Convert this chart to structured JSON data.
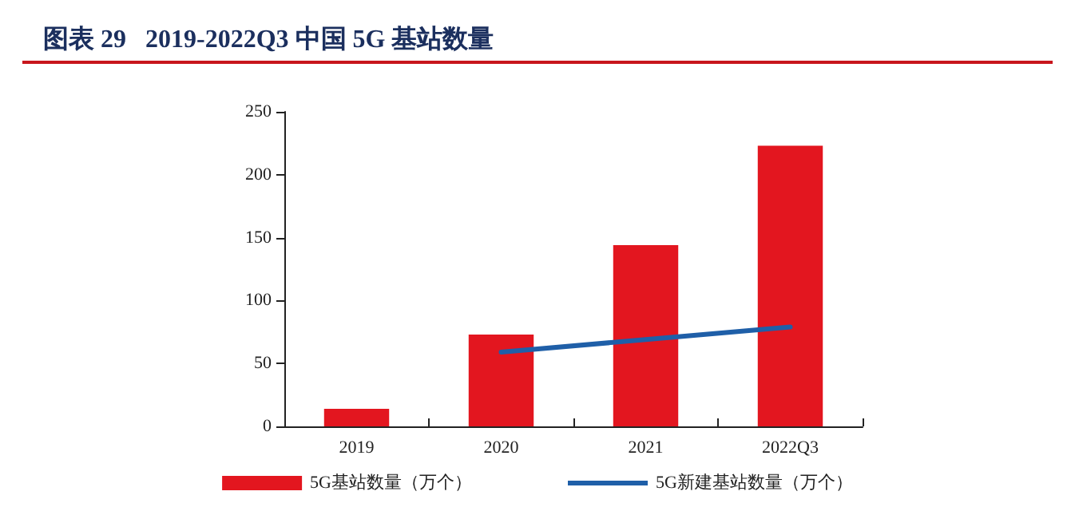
{
  "chart_data": {
    "type": "bar",
    "title": "图表 29   2019-2022Q3 中国 5G 基站数量",
    "categories": [
      "2019",
      "2020",
      "2021",
      "2022Q3"
    ],
    "series": [
      {
        "name": "5G基站数量（万个）",
        "color": "#e3161f",
        "values": [
          14,
          73,
          144,
          223
        ]
      },
      {
        "name": "5G新建基站数量（万个）",
        "type": "line",
        "color": "#1f5fa8",
        "values": [
          null,
          59,
          69,
          79
        ]
      }
    ],
    "ylim": [
      0,
      250
    ],
    "yticks": [
      0,
      50,
      100,
      150,
      200,
      250
    ],
    "grid": false,
    "legend": "bottom",
    "marker": "none",
    "line_style": "solid"
  }
}
